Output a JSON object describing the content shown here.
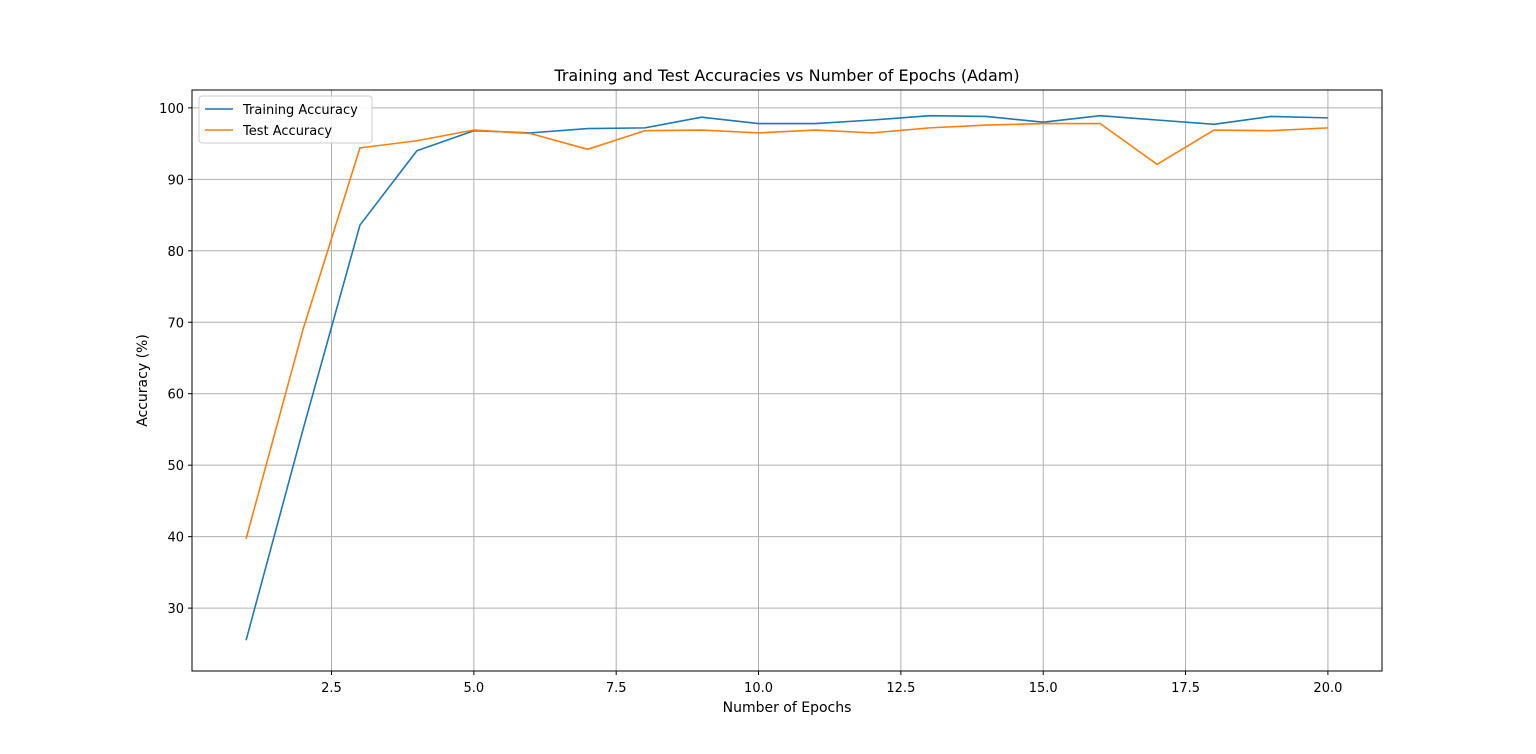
{
  "chart_data": {
    "type": "line",
    "title": "Training and Test Accuracies vs Number of Epochs (Adam)",
    "xlabel": "Number of Epochs",
    "ylabel": "Accuracy (%)",
    "xlim": [
      0.05,
      20.95
    ],
    "ylim": [
      21.2,
      102.5
    ],
    "xticks": [
      2.5,
      5.0,
      7.5,
      10.0,
      12.5,
      15.0,
      17.5,
      20.0
    ],
    "xtick_labels": [
      "2.5",
      "5.0",
      "7.5",
      "10.0",
      "12.5",
      "15.0",
      "17.5",
      "20.0"
    ],
    "yticks": [
      30,
      40,
      50,
      60,
      70,
      80,
      90,
      100
    ],
    "ytick_labels": [
      "30",
      "40",
      "50",
      "60",
      "70",
      "80",
      "90",
      "100"
    ],
    "grid": true,
    "legend_position": "top-left",
    "x": [
      1,
      2,
      3,
      4,
      5,
      6,
      7,
      8,
      9,
      10,
      11,
      12,
      13,
      14,
      15,
      16,
      17,
      18,
      19,
      20
    ],
    "series": [
      {
        "name": "Training Accuracy",
        "color": "#1f77b4",
        "values": [
          25.5,
          55.0,
          83.6,
          94.0,
          96.8,
          96.5,
          97.1,
          97.2,
          98.7,
          97.8,
          97.8,
          98.3,
          98.9,
          98.8,
          98.0,
          98.9,
          98.3,
          97.7,
          98.8,
          98.6
        ]
      },
      {
        "name": "Test Accuracy",
        "color": "#ff7f0e",
        "values": [
          39.7,
          69.0,
          94.4,
          95.4,
          96.9,
          96.4,
          94.2,
          96.8,
          96.9,
          96.5,
          96.9,
          96.5,
          97.2,
          97.6,
          97.8,
          97.8,
          92.1,
          96.9,
          96.8,
          97.2
        ]
      }
    ]
  }
}
